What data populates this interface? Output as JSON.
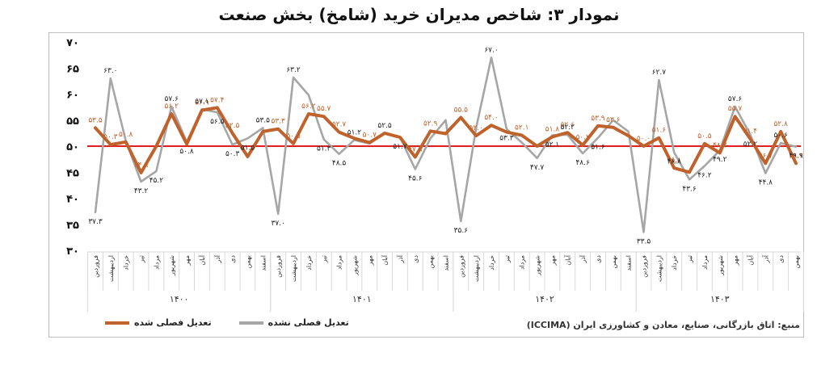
{
  "title": "نمودار ۳: شاخص مدیران خرید (شامخ) بخش صنعت",
  "source": "منبع: اتاق بازرگانی، صنایع، معادن و کشاورزی ایران (ICCIMA)",
  "colors": {
    "seasonal": "#c0622b",
    "nonseasonal": "#a6a6a6",
    "threshold": "#e02020",
    "grid": "#d9d9d9"
  },
  "chart_data": {
    "type": "line",
    "ylim": [
      30,
      70
    ],
    "yticks": [
      "۳۰",
      "۳۵",
      "۴۰",
      "۴۵",
      "۵۰",
      "۵۵",
      "۶۰",
      "۶۵",
      "۷۰"
    ],
    "threshold": 50,
    "legend_placement": "bottom-left",
    "months": [
      "فروردین",
      "اردیبهشت",
      "خرداد",
      "تیر",
      "مرداد",
      "شهریور",
      "مهر",
      "آبان",
      "آذر",
      "دی",
      "بهمن",
      "اسفند"
    ],
    "years": [
      "۱۴۰۰",
      "۱۴۰۱",
      "۱۴۰۲",
      "۱۴۰۳"
    ],
    "months_in_year": [
      12,
      12,
      12,
      11
    ],
    "series": [
      {
        "name": "تعدیل فصلی شده",
        "values": [
          53.5,
          50.3,
          50.8,
          44.9,
          50.0,
          56.2,
          50.4,
          56.9,
          57.4,
          52.5,
          48.0,
          52.8,
          53.3,
          50.5,
          56.2,
          55.7,
          52.7,
          51.5,
          50.7,
          52.5,
          51.7,
          47.9,
          52.9,
          52.4,
          55.5,
          52.0,
          54.0,
          52.7,
          52.1,
          50.0,
          51.8,
          52.6,
          50.2,
          53.9,
          53.6,
          52.0,
          50.0,
          51.6,
          45.8,
          45.0,
          50.5,
          48.7,
          55.7,
          51.4,
          46.7,
          52.8,
          46.7
        ],
        "labels": [
          "۵۳.۵",
          "۵۰.۳",
          "۵۰.۸",
          "۴۴.۹",
          "",
          "۵۶.۲",
          "",
          "۵۶.۹",
          "۵۷.۴",
          "۵۲.۵",
          "",
          "",
          "۵۳.۳",
          "۵۰.۵",
          "۵۶.۲",
          "۵۵.۷",
          "۵۲.۷",
          "",
          "۵۰.۷",
          "",
          "",
          "۴۷.۹",
          "۵۲.۹",
          "",
          "۵۵.۵",
          "۵۲.۰",
          "۵۴.۰",
          "",
          "۵۲.۱",
          "",
          "۵۱.۸",
          "۵۲.۶",
          "۵۰.۲",
          "۵۳.۹",
          "۵۳.۶",
          "",
          "۵۰.۰",
          "۵۱.۶",
          "۴۵.۸",
          "",
          "۵۰.۵",
          "۴۸.۷",
          "۵۵.۷",
          "۵۱.۴",
          "۴۶.۷",
          "۵۲.۸",
          "۴۶.۷"
        ]
      },
      {
        "name": "تعدیل فصلی نشده",
        "values": [
          37.3,
          63.0,
          51.0,
          43.2,
          45.2,
          57.6,
          50.8,
          57.1,
          56.5,
          50.3,
          51.5,
          53.5,
          37.0,
          63.2,
          59.8,
          51.3,
          48.5,
          51.2,
          50.5,
          52.5,
          51.7,
          45.6,
          51.5,
          55.0,
          35.6,
          53.5,
          67.0,
          53.3,
          50.7,
          47.7,
          52.1,
          52.2,
          48.6,
          51.6,
          55.0,
          52.8,
          33.5,
          62.7,
          48.8,
          43.6,
          46.2,
          49.2,
          57.6,
          52.2,
          44.8,
          50.6,
          49.9
        ],
        "labels": [
          "۳۷.۳",
          "۶۳.۰",
          "",
          "۴۳.۲",
          "۴۵.۲",
          "۵۷.۶",
          "۵۰.۸",
          "۵۷.۱",
          "۵۶.۵",
          "۵۰.۳",
          "۵۱.۵",
          "۵۳.۵",
          "۳۷.۰",
          "۶۳.۲",
          "",
          "۵۱.۳",
          "۴۸.۵",
          "۵۱.۲",
          "",
          "۵۲.۵",
          "۵۱.۷",
          "۴۵.۶",
          "",
          "",
          "۳۵.۶",
          "",
          "۶۷.۰",
          "۵۳.۳",
          "",
          "۴۷.۷",
          "۵۲.۱",
          "۵۲.۲",
          "۴۸.۶",
          "۵۱.۶",
          "",
          "",
          "۳۳.۵",
          "۶۲.۷",
          "۴۸.۸",
          "۴۳.۶",
          "۴۶.۲",
          "۴۹.۲",
          "۵۷.۶",
          "۵۲.۲",
          "۴۴.۸",
          "۵۰.۶",
          "۴۹.۹"
        ]
      }
    ]
  }
}
